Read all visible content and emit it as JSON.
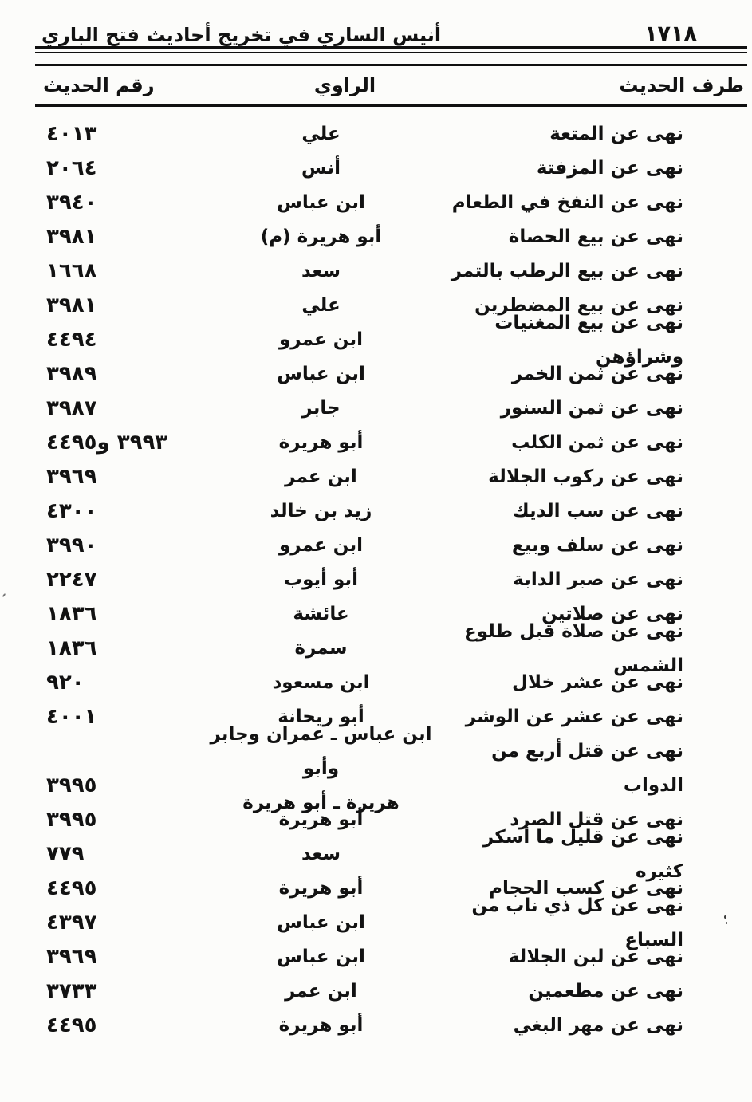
{
  "page": {
    "number": "١٧١٨",
    "book_title": "أنيس الساري في تخريج أحاديث فتح الباري"
  },
  "table": {
    "headers": {
      "hadith": "طرف الحديث",
      "narrator": "الراوي",
      "number": "رقم الحديث"
    },
    "rows": [
      {
        "hadith": "نهى عن المتعة",
        "narrator": "علي",
        "number": "٤٠١٣"
      },
      {
        "hadith": "نهى عن المزفتة",
        "narrator": "أنس",
        "number": "٢٠٦٤"
      },
      {
        "hadith": "نهى عن النفخ في الطعام",
        "narrator": "ابن عباس",
        "number": "٣٩٤٠"
      },
      {
        "hadith": "نهى عن بيع الحصاة",
        "narrator": "أبو هريرة (م)",
        "number": "٣٩٨١"
      },
      {
        "hadith": "نهى عن بيع الرطب بالتمر",
        "narrator": "سعد",
        "number": "١٦٦٨"
      },
      {
        "hadith": "نهى عن بيع المضطرين",
        "narrator": "علي",
        "number": "٣٩٨١"
      },
      {
        "hadith": "نهى عن بيع المغنيات وشراؤهن",
        "narrator": "ابن عمرو",
        "number": "٤٤٩٤"
      },
      {
        "hadith": "نهى عن ثمن الخمر",
        "narrator": "ابن عباس",
        "number": "٣٩٨٩"
      },
      {
        "hadith": "نهى عن ثمن السنور",
        "narrator": "جابر",
        "number": "٣٩٨٧"
      },
      {
        "hadith": "نهى عن ثمن الكلب",
        "narrator": "أبو هريرة",
        "number": "٣٩٩٣ و٤٤٩٥"
      },
      {
        "hadith": "نهى عن ركوب الجلالة",
        "narrator": "ابن عمر",
        "number": "٣٩٦٩"
      },
      {
        "hadith": "نهى عن سب الديك",
        "narrator": "زيد بن خالد",
        "number": "٤٣٠٠"
      },
      {
        "hadith": "نهى عن سلف وبيع",
        "narrator": "ابن عمرو",
        "number": "٣٩٩٠"
      },
      {
        "hadith": "نهى عن صبر الدابة",
        "narrator": "أبو أيوب",
        "number": "٢٢٤٧"
      },
      {
        "hadith": "نهى عن صلاتين",
        "narrator": "عائشة",
        "number": "١٨٣٦"
      },
      {
        "hadith": "نهى عن صلاة قبل طلوع الشمس",
        "narrator": "سمرة",
        "number": "١٨٣٦"
      },
      {
        "hadith": "نهى عن عشر خلال",
        "narrator": "ابن مسعود",
        "number": "٩٢٠"
      },
      {
        "hadith": "نهى عن عشر عن الوشر",
        "narrator": "أبو ريحانة",
        "number": "٤٠٠١"
      },
      {
        "hadith": "نهى عن قتل أربع من الدواب",
        "narrator": "ابن عباس ـ عمران وجابر وأبو",
        "narrator_line2": "هريرة ـ أبو هريرة",
        "number": "٣٩٩٥"
      },
      {
        "hadith": "نهى عن قتل الصرد",
        "narrator": "أبو هريرة",
        "number": "٣٩٩٥"
      },
      {
        "hadith": "نهى عن قليل ما أسكر كثيره",
        "narrator": "سعد",
        "number": "٧٧٩"
      },
      {
        "hadith": "نهى عن كسب الحجام",
        "narrator": "أبو هريرة",
        "number": "٤٤٩٥"
      },
      {
        "hadith": "نهى عن كل ذي ناب من السباع",
        "narrator": "ابن عباس",
        "number": "٤٣٩٧"
      },
      {
        "hadith": "نهى عن لبن الجلالة",
        "narrator": "ابن عباس",
        "number": "٣٩٦٩"
      },
      {
        "hadith": "نهى عن مطعمين",
        "narrator": "ابن عمر",
        "number": "٣٧٣٣"
      },
      {
        "hadith": "نهى عن مهر البغي",
        "narrator": "أبو هريرة",
        "number": "٤٤٩٥"
      }
    ]
  }
}
